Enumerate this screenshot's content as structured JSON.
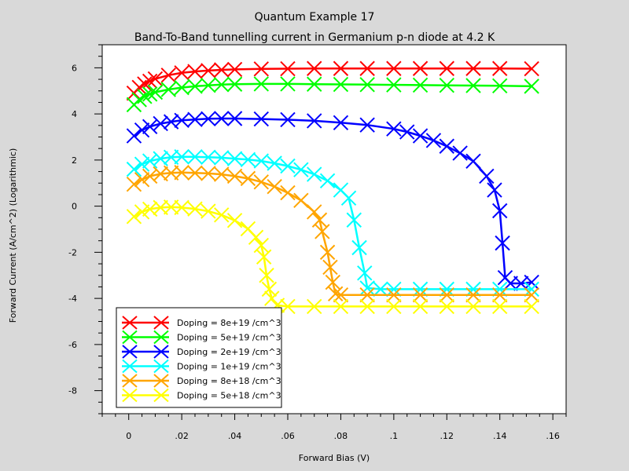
{
  "chart_data": {
    "type": "line",
    "title": "Quantum Example 17",
    "subtitle": "Band-To-Band tunnelling current in Germanium p-n diode at 4.2 K",
    "xlabel": "Forward Bias (V)",
    "ylabel": "Forward Current (A/cm^2) (Logarithmic)",
    "xlim": [
      -0.01,
      0.165
    ],
    "ylim": [
      -9,
      7
    ],
    "x_ticks": [
      0,
      0.02,
      0.04,
      0.06,
      0.08,
      0.1,
      0.12,
      0.14,
      0.16
    ],
    "y_ticks": [
      -8,
      -6,
      -4,
      -2,
      0,
      2,
      4,
      6
    ],
    "legend_position": "bottom-left",
    "grid": false,
    "series": [
      {
        "name": "Doping = 8e+19 /cm^3",
        "color": "#ff0000",
        "points": [
          [
            0.002,
            4.9
          ],
          [
            0.004,
            5.15
          ],
          [
            0.006,
            5.3
          ],
          [
            0.008,
            5.42
          ],
          [
            0.01,
            5.52
          ],
          [
            0.015,
            5.68
          ],
          [
            0.02,
            5.78
          ],
          [
            0.025,
            5.84
          ],
          [
            0.03,
            5.88
          ],
          [
            0.035,
            5.91
          ],
          [
            0.04,
            5.93
          ],
          [
            0.05,
            5.95
          ],
          [
            0.06,
            5.96
          ],
          [
            0.07,
            5.97
          ],
          [
            0.08,
            5.97
          ],
          [
            0.09,
            5.97
          ],
          [
            0.1,
            5.97
          ],
          [
            0.11,
            5.97
          ],
          [
            0.12,
            5.97
          ],
          [
            0.13,
            5.97
          ],
          [
            0.14,
            5.97
          ],
          [
            0.152,
            5.96
          ]
        ]
      },
      {
        "name": "Doping = 5e+19 /cm^3",
        "color": "#00ff00",
        "points": [
          [
            0.002,
            4.4
          ],
          [
            0.004,
            4.62
          ],
          [
            0.006,
            4.76
          ],
          [
            0.008,
            4.86
          ],
          [
            0.01,
            4.94
          ],
          [
            0.015,
            5.06
          ],
          [
            0.02,
            5.14
          ],
          [
            0.025,
            5.2
          ],
          [
            0.03,
            5.24
          ],
          [
            0.035,
            5.27
          ],
          [
            0.04,
            5.29
          ],
          [
            0.05,
            5.3
          ],
          [
            0.06,
            5.3
          ],
          [
            0.07,
            5.29
          ],
          [
            0.08,
            5.28
          ],
          [
            0.09,
            5.27
          ],
          [
            0.1,
            5.26
          ],
          [
            0.11,
            5.25
          ],
          [
            0.12,
            5.24
          ],
          [
            0.13,
            5.23
          ],
          [
            0.14,
            5.22
          ],
          [
            0.152,
            5.2
          ]
        ]
      },
      {
        "name": "Doping = 2e+19 /cm^3",
        "color": "#0000ff",
        "points": [
          [
            0.002,
            3.05
          ],
          [
            0.005,
            3.3
          ],
          [
            0.008,
            3.45
          ],
          [
            0.012,
            3.58
          ],
          [
            0.016,
            3.66
          ],
          [
            0.02,
            3.72
          ],
          [
            0.025,
            3.76
          ],
          [
            0.03,
            3.79
          ],
          [
            0.035,
            3.8
          ],
          [
            0.04,
            3.8
          ],
          [
            0.05,
            3.78
          ],
          [
            0.06,
            3.75
          ],
          [
            0.07,
            3.7
          ],
          [
            0.08,
            3.62
          ],
          [
            0.09,
            3.52
          ],
          [
            0.1,
            3.35
          ],
          [
            0.105,
            3.22
          ],
          [
            0.11,
            3.05
          ],
          [
            0.115,
            2.85
          ],
          [
            0.12,
            2.6
          ],
          [
            0.125,
            2.3
          ],
          [
            0.13,
            1.95
          ],
          [
            0.135,
            1.3
          ],
          [
            0.138,
            0.7
          ],
          [
            0.14,
            -0.2
          ],
          [
            0.141,
            -1.6
          ],
          [
            0.142,
            -3.1
          ],
          [
            0.144,
            -3.35
          ],
          [
            0.148,
            -3.35
          ],
          [
            0.152,
            -3.3
          ]
        ]
      },
      {
        "name": "Doping = 1e+19 /cm^3",
        "color": "#00ffff",
        "points": [
          [
            0.002,
            1.6
          ],
          [
            0.005,
            1.82
          ],
          [
            0.008,
            1.96
          ],
          [
            0.012,
            2.06
          ],
          [
            0.016,
            2.12
          ],
          [
            0.02,
            2.14
          ],
          [
            0.025,
            2.14
          ],
          [
            0.03,
            2.12
          ],
          [
            0.035,
            2.1
          ],
          [
            0.04,
            2.06
          ],
          [
            0.045,
            2.02
          ],
          [
            0.05,
            1.96
          ],
          [
            0.055,
            1.86
          ],
          [
            0.06,
            1.74
          ],
          [
            0.065,
            1.58
          ],
          [
            0.07,
            1.38
          ],
          [
            0.075,
            1.1
          ],
          [
            0.08,
            0.7
          ],
          [
            0.083,
            0.35
          ],
          [
            0.085,
            -0.6
          ],
          [
            0.087,
            -1.8
          ],
          [
            0.089,
            -2.9
          ],
          [
            0.09,
            -3.55
          ],
          [
            0.095,
            -3.6
          ],
          [
            0.1,
            -3.6
          ],
          [
            0.11,
            -3.6
          ],
          [
            0.12,
            -3.6
          ],
          [
            0.13,
            -3.6
          ],
          [
            0.14,
            -3.6
          ],
          [
            0.152,
            -3.6
          ]
        ]
      },
      {
        "name": "Doping = 8e+18 /cm^3",
        "color": "#ffa500",
        "points": [
          [
            0.002,
            0.95
          ],
          [
            0.005,
            1.15
          ],
          [
            0.008,
            1.3
          ],
          [
            0.012,
            1.4
          ],
          [
            0.016,
            1.44
          ],
          [
            0.02,
            1.46
          ],
          [
            0.025,
            1.44
          ],
          [
            0.03,
            1.42
          ],
          [
            0.035,
            1.38
          ],
          [
            0.04,
            1.3
          ],
          [
            0.045,
            1.2
          ],
          [
            0.05,
            1.05
          ],
          [
            0.055,
            0.85
          ],
          [
            0.06,
            0.58
          ],
          [
            0.065,
            0.25
          ],
          [
            0.07,
            -0.25
          ],
          [
            0.072,
            -0.6
          ],
          [
            0.073,
            -1.1
          ],
          [
            0.075,
            -2.0
          ],
          [
            0.076,
            -2.65
          ],
          [
            0.077,
            -3.3
          ],
          [
            0.078,
            -3.8
          ],
          [
            0.08,
            -3.85
          ],
          [
            0.09,
            -3.85
          ],
          [
            0.1,
            -3.85
          ],
          [
            0.11,
            -3.85
          ],
          [
            0.12,
            -3.85
          ],
          [
            0.13,
            -3.85
          ],
          [
            0.14,
            -3.85
          ],
          [
            0.152,
            -3.85
          ]
        ]
      },
      {
        "name": "Doping = 5e+18 /cm^3",
        "color": "#ffff00",
        "points": [
          [
            0.002,
            -0.45
          ],
          [
            0.005,
            -0.25
          ],
          [
            0.008,
            -0.13
          ],
          [
            0.012,
            -0.06
          ],
          [
            0.016,
            -0.04
          ],
          [
            0.02,
            -0.06
          ],
          [
            0.025,
            -0.12
          ],
          [
            0.03,
            -0.22
          ],
          [
            0.035,
            -0.38
          ],
          [
            0.04,
            -0.62
          ],
          [
            0.045,
            -0.98
          ],
          [
            0.048,
            -1.35
          ],
          [
            0.05,
            -1.7
          ],
          [
            0.051,
            -2.2
          ],
          [
            0.052,
            -3.0
          ],
          [
            0.053,
            -3.6
          ],
          [
            0.054,
            -4.0
          ],
          [
            0.056,
            -4.3
          ],
          [
            0.06,
            -4.35
          ],
          [
            0.07,
            -4.35
          ],
          [
            0.08,
            -4.35
          ],
          [
            0.09,
            -4.35
          ],
          [
            0.1,
            -4.35
          ],
          [
            0.11,
            -4.35
          ],
          [
            0.12,
            -4.35
          ],
          [
            0.13,
            -4.35
          ],
          [
            0.14,
            -4.35
          ],
          [
            0.152,
            -4.35
          ]
        ]
      }
    ]
  }
}
